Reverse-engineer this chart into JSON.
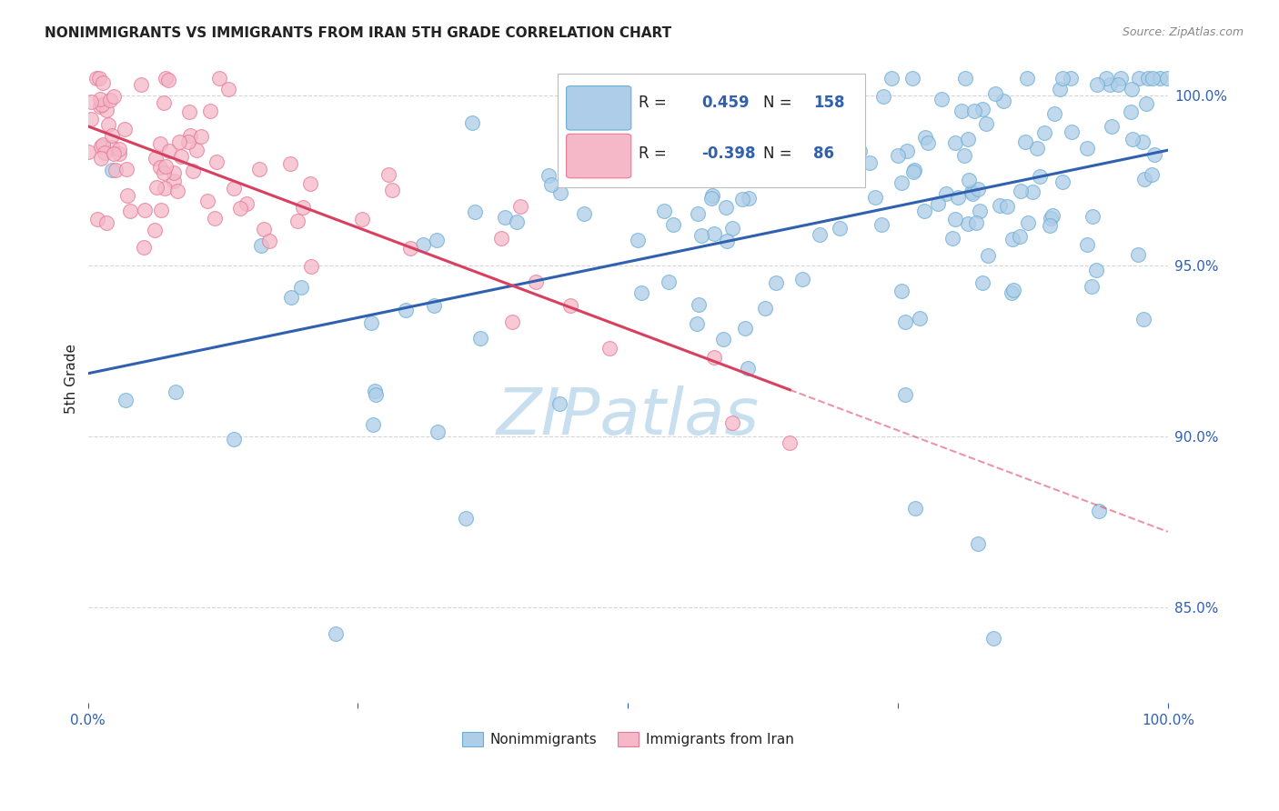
{
  "title": "NONIMMIGRANTS VS IMMIGRANTS FROM IRAN 5TH GRADE CORRELATION CHART",
  "source": "Source: ZipAtlas.com",
  "ylabel": "5th Grade",
  "ytick_labels": [
    "85.0%",
    "90.0%",
    "95.0%",
    "100.0%"
  ],
  "ytick_values": [
    0.85,
    0.9,
    0.95,
    1.0
  ],
  "xlim": [
    0.0,
    1.0
  ],
  "ylim": [
    0.822,
    1.012
  ],
  "legend_r_blue": "0.459",
  "legend_n_blue": "158",
  "legend_r_pink": "-0.398",
  "legend_n_pink": "86",
  "blue_marker_face": "#aecde8",
  "blue_marker_edge": "#6aaed6",
  "pink_marker_face": "#f4b8c8",
  "pink_marker_edge": "#e87898",
  "line_blue": "#3060b0",
  "line_pink": "#d84060",
  "watermark_color": "#c8dff0",
  "background_color": "#ffffff",
  "grid_color": "#cccccc",
  "text_color_dark": "#222222",
  "text_color_blue": "#3060b0"
}
